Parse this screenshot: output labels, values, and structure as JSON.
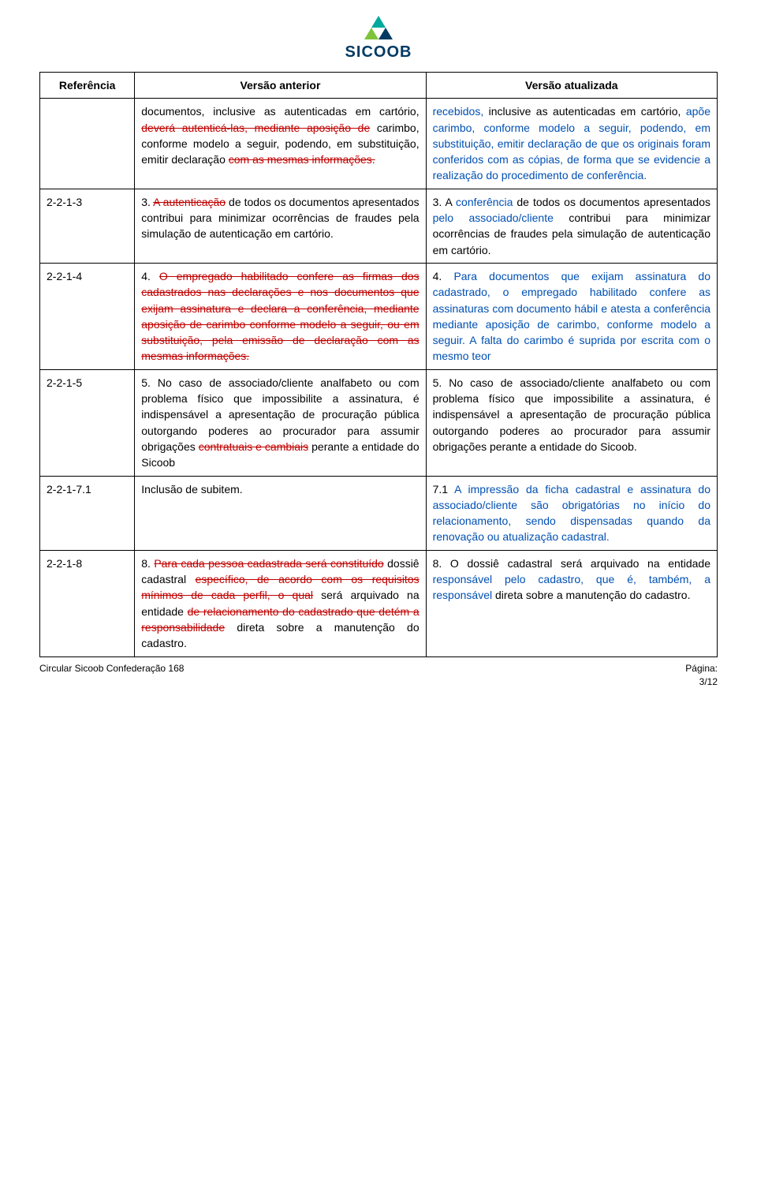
{
  "brand": {
    "name": "SICOOB",
    "color_primary": "#003a63",
    "color_accent1": "#00a560",
    "color_accent2": "#7ec43b"
  },
  "table": {
    "headers": {
      "ref": "Referência",
      "prev": "Versão anterior",
      "new": "Versão atualizada"
    },
    "col_widths_pct": [
      14,
      43,
      43
    ],
    "border_color": "#000000",
    "font_size_pt": 11,
    "rows": [
      {
        "ref": "",
        "prev": {
          "segments": [
            {
              "t": "documentos, inclusive as autenticadas em cartório, "
            },
            {
              "t": "deverá autenticá-las, mediante aposição de",
              "s": true
            },
            {
              "t": " carimbo, conforme modelo a seguir, podendo, em substituição, emitir declaração "
            },
            {
              "t": "com as mesmas informações.",
              "s": true
            }
          ]
        },
        "new": {
          "segments": [
            {
              "t": "recebidos,",
              "b": true
            },
            {
              "t": " inclusive as autenticadas em cartório, "
            },
            {
              "t": "apõe carimbo, conforme modelo a seguir, podendo, em substituição, emitir declaração de que os originais foram conferidos com as cópias, de forma que se evidencie a realização do procedimento de conferência.",
              "b": true
            }
          ]
        }
      },
      {
        "ref": "2-2-1-3",
        "prev": {
          "segments": [
            {
              "t": "3. "
            },
            {
              "t": "A autenticação",
              "s": true
            },
            {
              "t": " de todos os documentos apresentados contribui para minimizar ocorrências de fraudes pela simulação de autenticação em cartório."
            }
          ]
        },
        "new": {
          "segments": [
            {
              "t": "3. A "
            },
            {
              "t": "conferência",
              "b": true
            },
            {
              "t": " de todos os documentos apresentados "
            },
            {
              "t": "pelo associado/cliente",
              "b": true
            },
            {
              "t": " contribui para minimizar ocorrências de fraudes pela simulação de autenticação em cartório."
            }
          ]
        }
      },
      {
        "ref": "2-2-1-4",
        "prev": {
          "segments": [
            {
              "t": "4. "
            },
            {
              "t": "O empregado habilitado confere as firmas dos cadastrados nas declarações e nos documentos que exijam assinatura e declara a conferência, mediante aposição de carimbo conforme modelo a seguir, ou em substituição, pela emissão de declaração com as mesmas informações.",
              "s": true
            }
          ]
        },
        "new": {
          "segments": [
            {
              "t": "4. "
            },
            {
              "t": "Para documentos que exijam assinatura do cadastrado, o empregado habilitado confere as assinaturas com documento hábil e atesta a conferência mediante aposição de carimbo, conforme modelo a seguir. A falta do carimbo é suprida por escrita com o mesmo teor",
              "b": true
            }
          ]
        }
      },
      {
        "ref": "2-2-1-5",
        "prev": {
          "segments": [
            {
              "t": "5. No caso de associado/cliente analfabeto ou com problema físico que impossibilite a assinatura, é indispensável a apresentação de procuração pública outorgando poderes ao procurador para assumir obrigações "
            },
            {
              "t": "contratuais e cambiais",
              "s": true
            },
            {
              "t": " perante a entidade do Sicoob"
            }
          ]
        },
        "new": {
          "segments": [
            {
              "t": "5. No caso de associado/cliente analfabeto ou com problema físico que impossibilite a assinatura, é indispensável a apresentação de procuração pública outorgando poderes ao procurador para assumir obrigações perante a entidade do Sicoob."
            }
          ]
        }
      },
      {
        "ref": "2-2-1-7.1",
        "prev": {
          "segments": [
            {
              "t": "Inclusão de subitem."
            }
          ]
        },
        "new": {
          "segments": [
            {
              "t": "7.1 "
            },
            {
              "t": "A impressão da ficha cadastral e assinatura do associado/cliente são obrigatórias no início do relacionamento, sendo dispensadas quando da renovação ou atualização cadastral.",
              "b": true
            }
          ]
        }
      },
      {
        "ref": "2-2-1-8",
        "prev": {
          "segments": [
            {
              "t": "8. "
            },
            {
              "t": "Para cada pessoa cadastrada será constituído",
              "s": true
            },
            {
              "t": " dossiê cadastral "
            },
            {
              "t": "específico, de acordo com os requisitos mínimos de cada perfil, o qual",
              "s": true
            },
            {
              "t": " será arquivado na entidade "
            },
            {
              "t": "de relacionamento do cadastrado que detém a responsabilidade",
              "s": true
            },
            {
              "t": " direta sobre a manutenção do cadastro."
            }
          ]
        },
        "new": {
          "segments": [
            {
              "t": "8. O dossiê cadastral será arquivado na entidade "
            },
            {
              "t": "responsável pelo cadastro, que é, também, a responsável",
              "b": true
            },
            {
              "t": " direta sobre a manutenção do cadastro."
            }
          ]
        }
      }
    ]
  },
  "footer": {
    "left": "Circular Sicoob Confederação 168",
    "right_label": "Página:",
    "right_value": "3/12"
  },
  "colors": {
    "text": "#000000",
    "strike": "#c00000",
    "blue": "#0050b3",
    "background": "#ffffff"
  }
}
